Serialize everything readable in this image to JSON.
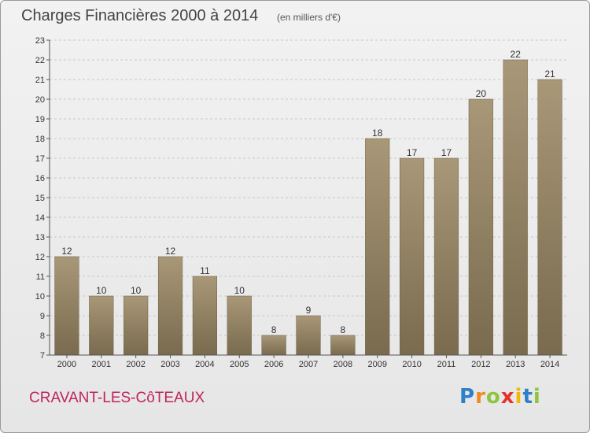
{
  "chart_data": {
    "type": "bar",
    "title": "Charges Financières 2000 à 2014",
    "subtitle": "(en milliers d'€)",
    "categories": [
      "2000",
      "2001",
      "2002",
      "2003",
      "2004",
      "2005",
      "2006",
      "2007",
      "2008",
      "2009",
      "2010",
      "2011",
      "2012",
      "2013",
      "2014"
    ],
    "values": [
      12,
      10,
      10,
      12,
      11,
      10,
      8,
      9,
      8,
      18,
      17,
      17,
      20,
      22,
      21
    ],
    "xlabel": "",
    "ylabel": "",
    "ylim": [
      7,
      23
    ],
    "yticks": [
      7,
      8,
      9,
      10,
      11,
      12,
      13,
      14,
      15,
      16,
      17,
      18,
      19,
      20,
      21,
      22,
      23
    ],
    "grid": true,
    "bar_color_top": "#a89878",
    "bar_color_bottom": "#7a6a4e"
  },
  "footer": {
    "commune": "CRAVANT-LES-CôTEAUX"
  },
  "logo": {
    "letters": [
      {
        "ch": "P",
        "color": "#2f7fc8"
      },
      {
        "ch": "r",
        "color": "#f08a1c"
      },
      {
        "ch": "o",
        "color": "#8cc63e"
      },
      {
        "ch": "x",
        "color": "#e5332a"
      },
      {
        "ch": "i",
        "color": "#f5b800"
      },
      {
        "ch": "t",
        "color": "#2f7fc8"
      },
      {
        "ch": "i",
        "color": "#8cc63e"
      }
    ]
  }
}
